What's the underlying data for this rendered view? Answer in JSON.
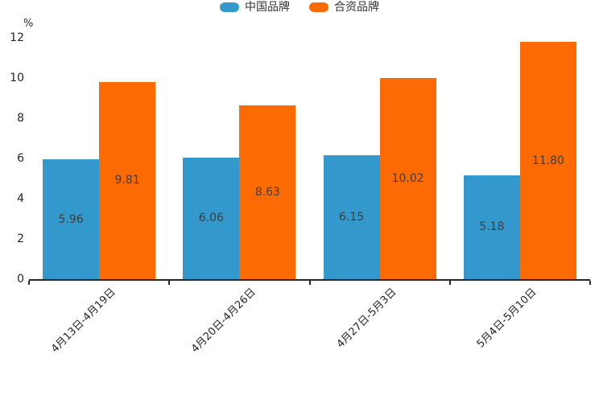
{
  "chart_data": {
    "type": "bar",
    "title": "",
    "xlabel": "",
    "ylabel": "%",
    "categories": [
      "4月13日-4月19日",
      "4月20日-4月26日",
      "4月27日-5月3日",
      "5月4日-5月10日"
    ],
    "series": [
      {
        "name": "中国品牌",
        "color": "#3398CC",
        "values": [
          5.96,
          6.06,
          6.15,
          5.18
        ],
        "labels": [
          "5.96",
          "6.06",
          "6.15",
          "5.18"
        ]
      },
      {
        "name": "合资品牌",
        "color": "#FC6A03",
        "values": [
          9.81,
          8.63,
          10.02,
          11.8
        ],
        "labels": [
          "9.81",
          "8.63",
          "10.02",
          "11.80"
        ]
      }
    ],
    "ylim": [
      0,
      12
    ],
    "yticks": [
      0,
      2,
      4,
      6,
      8,
      10,
      12
    ],
    "grid": false,
    "legend_position": "top-center",
    "bar_label_position": "inside-center",
    "x_tick_rotation": 45,
    "bar_label_color": "#3d3d3d",
    "axis_color": "#262626"
  }
}
